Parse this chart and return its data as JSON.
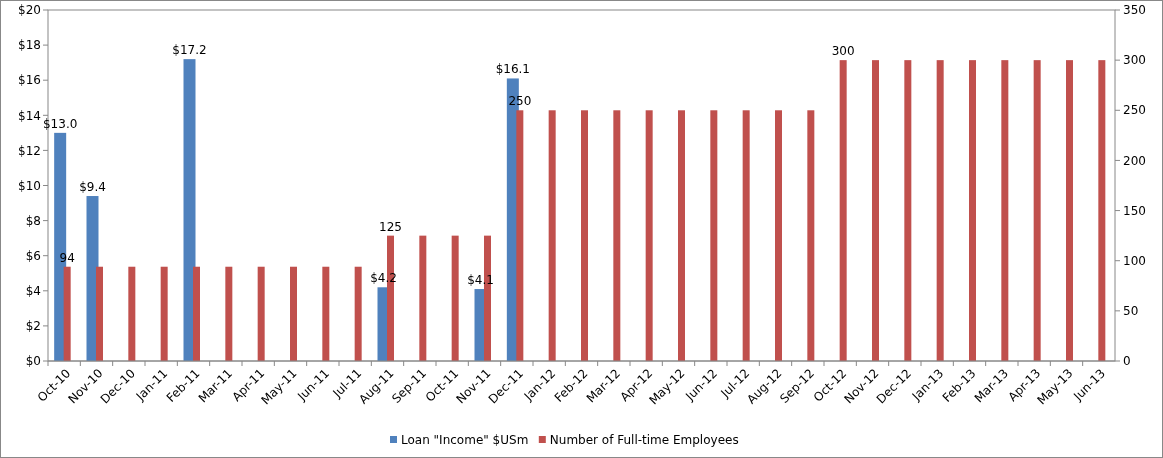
{
  "chart_data": {
    "type": "bar",
    "categories": [
      "Oct-10",
      "Nov-10",
      "Dec-10",
      "Jan-11",
      "Feb-11",
      "Mar-11",
      "Apr-11",
      "May-11",
      "Jun-11",
      "Jul-11",
      "Aug-11",
      "Sep-11",
      "Oct-11",
      "Nov-11",
      "Dec-11",
      "Jan-12",
      "Feb-12",
      "Mar-12",
      "Apr-12",
      "May-12",
      "Jun-12",
      "Jul-12",
      "Aug-12",
      "Sep-12",
      "Oct-12",
      "Nov-12",
      "Dec-12",
      "Jan-13",
      "Feb-13",
      "Mar-13",
      "Apr-13",
      "May-13",
      "Jun-13"
    ],
    "series": [
      {
        "name": "Loan \"Income\" $USm",
        "color": "#4f81bd",
        "values": [
          13.0,
          9.4,
          null,
          null,
          17.2,
          null,
          null,
          null,
          null,
          null,
          4.2,
          null,
          null,
          4.1,
          16.1,
          null,
          null,
          null,
          null,
          null,
          null,
          null,
          null,
          null,
          null,
          null,
          null,
          null,
          null,
          null,
          null,
          null,
          null
        ],
        "value_labels": [
          "$13.0",
          "$9.4",
          null,
          null,
          "$17.2",
          null,
          null,
          null,
          null,
          null,
          "$4.2",
          null,
          null,
          "$4.1",
          "$16.1",
          null,
          null,
          null,
          null,
          null,
          null,
          null,
          null,
          null,
          null,
          null,
          null,
          null,
          null,
          null,
          null,
          null,
          null
        ]
      },
      {
        "name": "Number of Full-time Employees",
        "color": "#c0504d",
        "axis": "y2",
        "values": [
          94,
          94,
          94,
          94,
          94,
          94,
          94,
          94,
          94,
          94,
          125,
          125,
          125,
          125,
          250,
          250,
          250,
          250,
          250,
          250,
          250,
          250,
          250,
          250,
          300,
          300,
          300,
          300,
          300,
          300,
          300,
          300,
          300
        ],
        "value_labels": [
          "94",
          null,
          null,
          null,
          null,
          null,
          null,
          null,
          null,
          null,
          "125",
          null,
          null,
          null,
          "250",
          null,
          null,
          null,
          null,
          null,
          null,
          null,
          null,
          null,
          "300",
          null,
          null,
          null,
          null,
          null,
          null,
          null,
          null
        ]
      }
    ],
    "ylim": [
      0,
      20
    ],
    "yticks": [
      {
        "value": 0,
        "label": "$0"
      },
      {
        "value": 2,
        "label": "$2"
      },
      {
        "value": 4,
        "label": "$4"
      },
      {
        "value": 6,
        "label": "$6"
      },
      {
        "value": 8,
        "label": "$8"
      },
      {
        "value": 10,
        "label": "$10"
      },
      {
        "value": 12,
        "label": "$12"
      },
      {
        "value": 14,
        "label": "$14"
      },
      {
        "value": 16,
        "label": "$16"
      },
      {
        "value": 18,
        "label": "$18"
      },
      {
        "value": 20,
        "label": "$20"
      }
    ],
    "y2lim": [
      0,
      350
    ],
    "y2ticks": [
      0,
      50,
      100,
      150,
      200,
      250,
      300,
      350
    ],
    "legend": "bottom",
    "grid": false
  }
}
